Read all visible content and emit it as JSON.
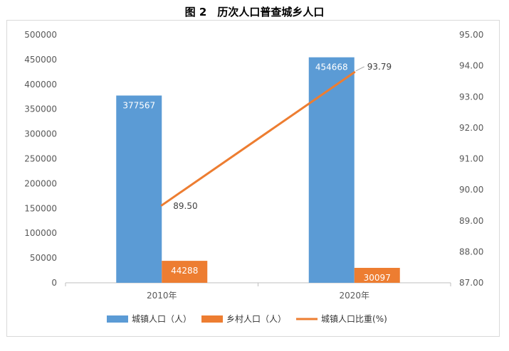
{
  "chart_data": {
    "type": "bar",
    "title": "图 2　历次人口普查城乡人口",
    "categories": [
      "2010年",
      "2020年"
    ],
    "series": [
      {
        "name": "城镇人口（人）",
        "kind": "bar",
        "axis": "left",
        "color": "#5b9bd5",
        "values": [
          377567,
          454668
        ],
        "labels": [
          "377567",
          "454668"
        ]
      },
      {
        "name": "乡村人口（人）",
        "kind": "bar",
        "axis": "left",
        "color": "#ed7d31",
        "values": [
          44288,
          30097
        ],
        "labels": [
          "44288",
          "30097"
        ]
      },
      {
        "name": "城镇人口比重(%)",
        "kind": "line",
        "axis": "right",
        "color": "#ed7d31",
        "values": [
          89.5,
          93.79
        ],
        "labels": [
          "89.50",
          "93.79"
        ]
      }
    ],
    "y_left": {
      "min": 0,
      "max": 500000,
      "step": 50000,
      "ticks": [
        "0",
        "50000",
        "100000",
        "150000",
        "200000",
        "250000",
        "300000",
        "350000",
        "400000",
        "450000",
        "500000"
      ]
    },
    "y_right": {
      "min": 87,
      "max": 95,
      "step": 1,
      "ticks": [
        "87.00",
        "88.00",
        "89.00",
        "90.00",
        "91.00",
        "92.00",
        "93.00",
        "94.00",
        "95.00"
      ]
    },
    "grid": false,
    "legend_position": "bottom"
  }
}
